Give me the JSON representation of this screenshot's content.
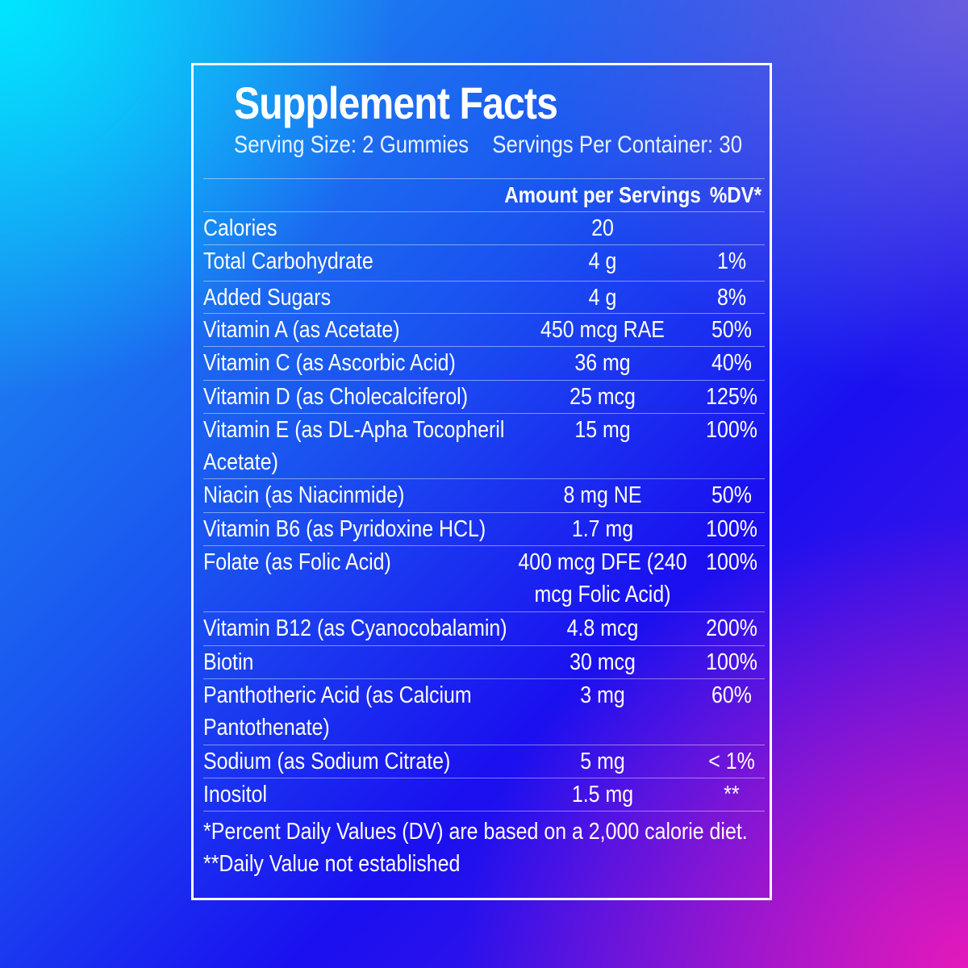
{
  "title": "Supplement Facts",
  "serving_size": "Serving Size: 2 Gummies",
  "servings_per_container": "Servings Per Container: 30",
  "table": {
    "headers": {
      "name": "",
      "amount": "Amount per Servings",
      "dv": "%DV*"
    },
    "rows": [
      {
        "name": "Calories",
        "amount": "20",
        "dv": ""
      },
      {
        "name": "Total Carbohydrate",
        "amount": "4 g",
        "dv": "1%"
      },
      {
        "name": "Added Sugars",
        "amount": "4 g",
        "dv": "8%"
      },
      {
        "name": "Vitamin A (as Acetate)",
        "amount": "450 mcg RAE",
        "dv": "50%"
      },
      {
        "name": "Vitamin C (as Ascorbic Acid)",
        "amount": "36 mg",
        "dv": "40%"
      },
      {
        "name": "Vitamin D (as Cholecalciferol)",
        "amount": "25 mcg",
        "dv": "125%"
      },
      {
        "name": "Vitamin E (as DL-Apha Tocopheril Acetate)",
        "amount": "15 mg",
        "dv": "100%"
      },
      {
        "name": "Niacin (as Niacinmide)",
        "amount": "8 mg NE",
        "dv": "50%"
      },
      {
        "name": "Vitamin B6 (as Pyridoxine HCL)",
        "amount": "1.7 mg",
        "dv": "100%"
      },
      {
        "name": "Folate (as Folic Acid)",
        "amount": "400 mcg DFE (240 mcg Folic Acid)",
        "dv": "100%"
      },
      {
        "name": "Vitamin B12 (as Cyanocobalamin)",
        "amount": "4.8 mcg",
        "dv": "200%"
      },
      {
        "name": "Biotin",
        "amount": "30 mcg",
        "dv": "100%"
      },
      {
        "name": "Panthotheric Acid (as Calcium Pantothenate)",
        "amount": "3 mg",
        "dv": "60%"
      },
      {
        "name": "Sodium (as Sodium Citrate)",
        "amount": "5 mg",
        "dv": "< 1%"
      },
      {
        "name": "Inositol",
        "amount": "1.5 mg",
        "dv": "**"
      }
    ]
  },
  "footnotes": [
    "*Percent Daily Values (DV) are based on a 2,000 calorie diet.",
    "**Daily Value not established"
  ],
  "colors": {
    "text": "#ffffff",
    "border": "#ffffff"
  }
}
